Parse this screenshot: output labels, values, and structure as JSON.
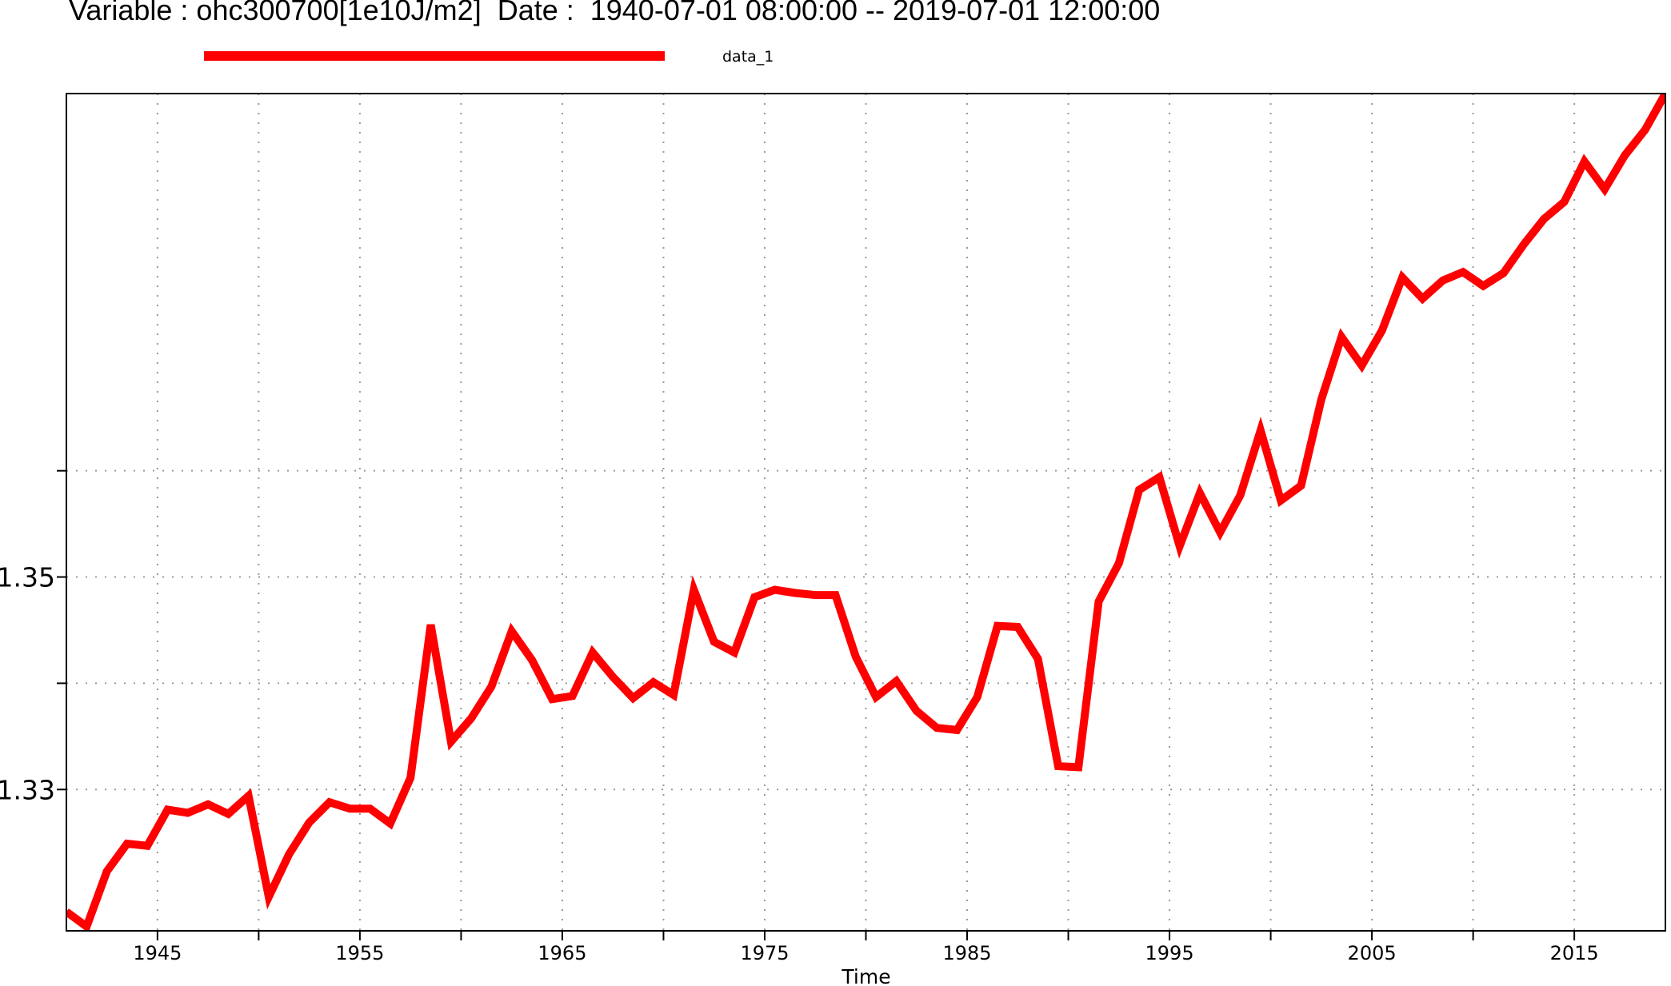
{
  "chart_data": {
    "type": "line",
    "title": "Variable : ohc300700[1e10J/m2]  Date :  1940-07-01 08:00:00 -- 2019-07-01 12:00:00",
    "xlabel": "Time",
    "ylabel": "",
    "xlim": [
      1940.5,
      2019.5
    ],
    "ylim": [
      1.3167,
      1.3955
    ],
    "x_ticks": [
      1945,
      1955,
      1965,
      1975,
      1985,
      1995,
      2005,
      2015
    ],
    "x_minor_ticks": [
      1950,
      1960,
      1970,
      1980,
      1990,
      2000,
      2010
    ],
    "y_ticks": [
      1.33,
      1.35
    ],
    "y_minor_ticks": [
      1.34,
      1.36
    ],
    "grid": true,
    "legend_position": "top",
    "series": [
      {
        "name": "data_1",
        "color": "#ff0000",
        "x": [
          1940.5,
          1941.5,
          1942.5,
          1943.5,
          1944.5,
          1945.5,
          1946.5,
          1947.5,
          1948.5,
          1949.5,
          1950.5,
          1951.5,
          1952.5,
          1953.5,
          1954.5,
          1955.5,
          1956.5,
          1957.5,
          1958.5,
          1959.5,
          1960.5,
          1961.5,
          1962.5,
          1963.5,
          1964.5,
          1965.5,
          1966.5,
          1967.5,
          1968.5,
          1969.5,
          1970.5,
          1971.5,
          1972.5,
          1973.5,
          1974.5,
          1975.5,
          1976.5,
          1977.5,
          1978.5,
          1979.5,
          1980.5,
          1981.5,
          1982.5,
          1983.5,
          1984.5,
          1985.5,
          1986.5,
          1987.5,
          1988.5,
          1989.5,
          1990.5,
          1991.5,
          1992.5,
          1993.5,
          1994.5,
          1995.5,
          1996.5,
          1997.5,
          1998.5,
          1999.5,
          2000.5,
          2001.5,
          2002.5,
          2003.5,
          2004.5,
          2005.5,
          2006.5,
          2007.5,
          2008.5,
          2009.5,
          2010.5,
          2011.5,
          2012.5,
          2013.5,
          2014.5,
          2015.5,
          2016.5,
          2017.5,
          2018.5,
          2019.5
        ],
        "values": [
          1.3185,
          1.3171,
          1.3223,
          1.3249,
          1.3247,
          1.3281,
          1.3278,
          1.3286,
          1.3277,
          1.3294,
          1.3199,
          1.3239,
          1.3269,
          1.3288,
          1.3282,
          1.3282,
          1.3268,
          1.3311,
          1.3455,
          1.3345,
          1.3367,
          1.3397,
          1.3449,
          1.3422,
          1.3385,
          1.3388,
          1.3429,
          1.3406,
          1.3386,
          1.3401,
          1.3389,
          1.3488,
          1.3439,
          1.3429,
          1.3481,
          1.3488,
          1.3485,
          1.3483,
          1.3483,
          1.3425,
          1.3387,
          1.3402,
          1.3374,
          1.3358,
          1.3356,
          1.3387,
          1.3454,
          1.3453,
          1.3423,
          1.3322,
          1.3321,
          1.3477,
          1.3513,
          1.3582,
          1.3594,
          1.3529,
          1.3579,
          1.3542,
          1.3577,
          1.3638,
          1.3572,
          1.3586,
          1.3667,
          1.3726,
          1.3699,
          1.3732,
          1.3782,
          1.3762,
          1.3779,
          1.3787,
          1.3774,
          1.3786,
          1.3813,
          1.3837,
          1.3853,
          1.3891,
          1.3865,
          1.3897,
          1.3921,
          1.3955
        ]
      }
    ]
  }
}
